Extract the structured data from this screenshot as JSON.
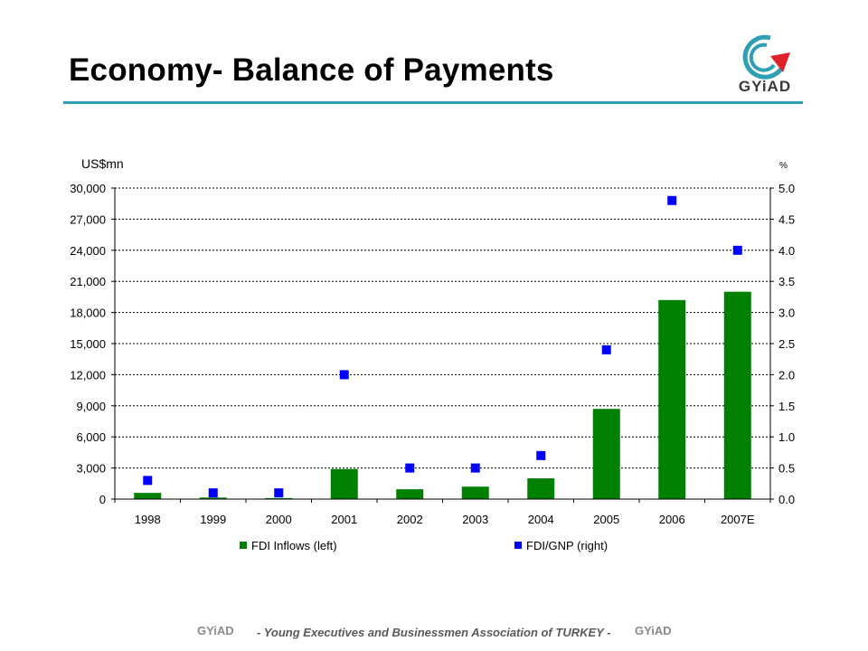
{
  "header": {
    "title": "Economy- Balance of Payments"
  },
  "logo": {
    "text": "GYiAD"
  },
  "footer": {
    "text": "- Young Executives and Businessmen Association of TURKEY -",
    "logo_left": "GYiAD",
    "logo_right": "GYiAD"
  },
  "colors": {
    "bar": "#008000",
    "marker": "#0000ff",
    "accent": "#2f9fb3",
    "logo_red": "#e0202a"
  },
  "chart_data": {
    "type": "bar",
    "categories": [
      "1998",
      "1999",
      "2000",
      "2001",
      "2002",
      "2003",
      "2004",
      "2005",
      "2006",
      "2007E"
    ],
    "series": [
      {
        "name": "FDI Inflows (left)",
        "type": "bar",
        "axis": "left",
        "values": [
          600,
          150,
          100,
          2900,
          950,
          1200,
          2000,
          8700,
          19200,
          20000
        ]
      },
      {
        "name": "FDI/GNP (right)",
        "type": "scatter",
        "axis": "right",
        "values": [
          0.3,
          0.1,
          0.1,
          2.0,
          0.5,
          0.5,
          0.7,
          2.4,
          4.8,
          4.0
        ]
      }
    ],
    "ylabel_left": "US$mn",
    "ylabel_right": "%",
    "ylim_left": [
      0,
      30000
    ],
    "ylim_right": [
      0,
      5.0
    ],
    "yticks_left": [
      "0",
      "3,000",
      "6,000",
      "9,000",
      "12,000",
      "15,000",
      "18,000",
      "21,000",
      "24,000",
      "27,000",
      "30,000"
    ],
    "yticks_right": [
      "0.0",
      "0.5",
      "1.0",
      "1.5",
      "2.0",
      "2.5",
      "3.0",
      "3.5",
      "4.0",
      "4.5",
      "5.0"
    ],
    "grid": true,
    "legend_position": "bottom"
  }
}
